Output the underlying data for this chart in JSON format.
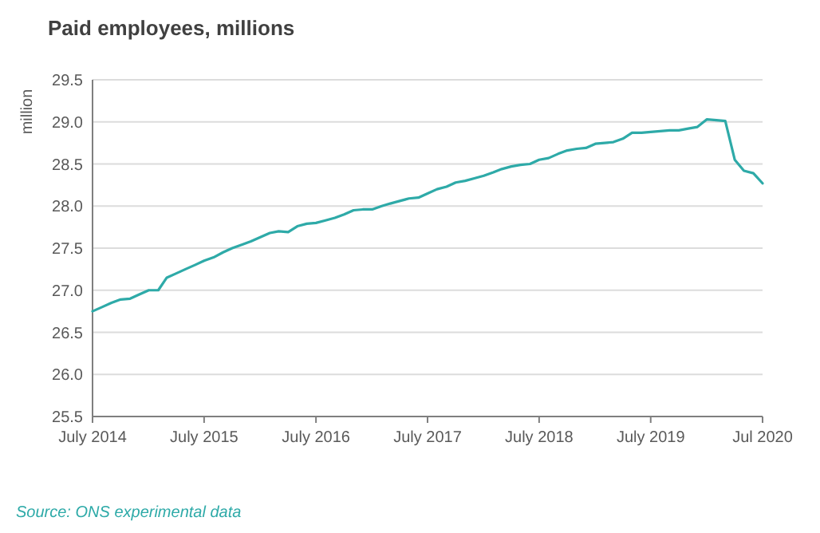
{
  "chart_data": {
    "type": "line",
    "title": "Paid employees, millions",
    "ylabel": "million",
    "annotations": [
      "Source: ONS experimental data"
    ],
    "x": [
      "2014-07",
      "2014-08",
      "2014-09",
      "2014-10",
      "2014-11",
      "2014-12",
      "2015-01",
      "2015-02",
      "2015-03",
      "2015-04",
      "2015-05",
      "2015-06",
      "2015-07",
      "2015-08",
      "2015-09",
      "2015-10",
      "2015-11",
      "2015-12",
      "2016-01",
      "2016-02",
      "2016-03",
      "2016-04",
      "2016-05",
      "2016-06",
      "2016-07",
      "2016-08",
      "2016-09",
      "2016-10",
      "2016-11",
      "2016-12",
      "2017-01",
      "2017-02",
      "2017-03",
      "2017-04",
      "2017-05",
      "2017-06",
      "2017-07",
      "2017-08",
      "2017-09",
      "2017-10",
      "2017-11",
      "2017-12",
      "2018-01",
      "2018-02",
      "2018-03",
      "2018-04",
      "2018-05",
      "2018-06",
      "2018-07",
      "2018-08",
      "2018-09",
      "2018-10",
      "2018-11",
      "2018-12",
      "2019-01",
      "2019-02",
      "2019-03",
      "2019-04",
      "2019-05",
      "2019-06",
      "2019-07",
      "2019-08",
      "2019-09",
      "2019-10",
      "2019-11",
      "2019-12",
      "2020-01",
      "2020-02",
      "2020-03",
      "2020-04",
      "2020-05",
      "2020-06",
      "2020-07"
    ],
    "series": [
      {
        "color": "#2eaaa8",
        "values": [
          26.75,
          26.8,
          26.85,
          26.89,
          26.9,
          26.95,
          27.0,
          27.0,
          27.15,
          27.2,
          27.25,
          27.3,
          27.35,
          27.39,
          27.45,
          27.5,
          27.54,
          27.58,
          27.63,
          27.68,
          27.7,
          27.69,
          27.76,
          27.79,
          27.8,
          27.83,
          27.86,
          27.9,
          27.95,
          27.96,
          27.96,
          28.0,
          28.03,
          28.06,
          28.09,
          28.1,
          28.15,
          28.2,
          28.23,
          28.28,
          28.3,
          28.33,
          28.36,
          28.4,
          28.44,
          28.47,
          28.49,
          28.5,
          28.55,
          28.57,
          28.62,
          28.66,
          28.68,
          28.69,
          28.74,
          28.75,
          28.76,
          28.8,
          28.87,
          28.87,
          28.88,
          28.89,
          28.9,
          28.9,
          28.92,
          28.94,
          29.03,
          29.02,
          29.01,
          28.55,
          28.42,
          28.39,
          28.27
        ]
      }
    ],
    "xlim": [
      "2014-07",
      "2020-07"
    ],
    "xticks": [
      {
        "value": "2014-07",
        "label": "July 2014"
      },
      {
        "value": "2015-07",
        "label": "July 2015"
      },
      {
        "value": "2016-07",
        "label": "July 2016"
      },
      {
        "value": "2017-07",
        "label": "July 2017"
      },
      {
        "value": "2018-07",
        "label": "July 2018"
      },
      {
        "value": "2019-07",
        "label": "July 2019"
      },
      {
        "value": "2020-07",
        "label": "Jul 2020"
      }
    ],
    "ylim": [
      25.5,
      29.5
    ],
    "yticks": [
      {
        "value": 25.5,
        "label": "25.5"
      },
      {
        "value": 26,
        "label": "26.0"
      },
      {
        "value": 26.5,
        "label": "26.5"
      },
      {
        "value": 27,
        "label": "27.0"
      },
      {
        "value": 27.5,
        "label": "27.5"
      },
      {
        "value": 28,
        "label": "28.0"
      },
      {
        "value": 28.5,
        "label": "28.5"
      },
      {
        "value": 29,
        "label": "29.0"
      },
      {
        "value": 29.5,
        "label": "29.5"
      }
    ],
    "grid": "y",
    "marker": "none",
    "line_style": "solid"
  }
}
